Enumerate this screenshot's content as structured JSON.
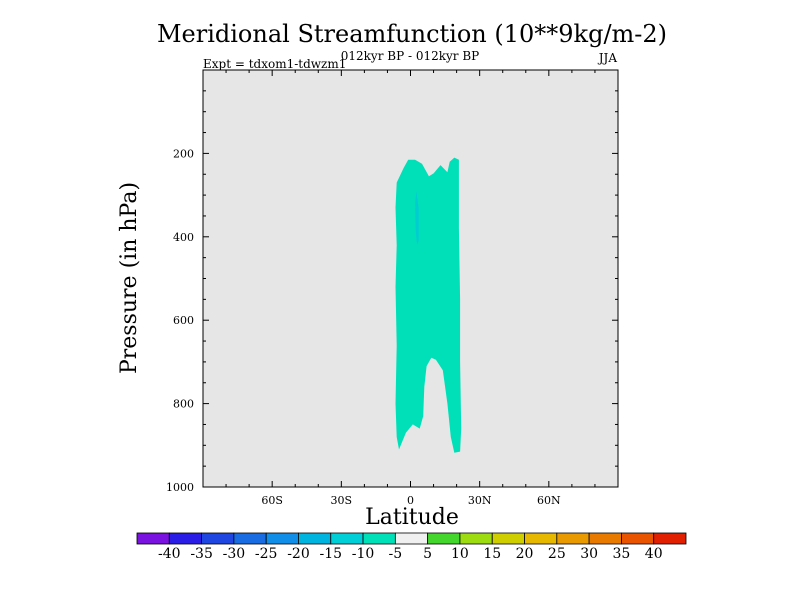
{
  "chart_data": {
    "type": "contour",
    "title": "Meridional Streamfunction (10**9kg/m-2)",
    "subtitle_left": "Expt = tdxom1-tdwzm1",
    "subtitle_center": "012kyr BP - 012kyr BP",
    "subtitle_right": "JJA",
    "xlabel": "Latitude",
    "ylabel": "Pressure (in hPa)",
    "xlim": [
      -90,
      90
    ],
    "ylim": [
      1000,
      0
    ],
    "x_ticks": [
      {
        "value": -60,
        "label": "60S"
      },
      {
        "value": -30,
        "label": "30S"
      },
      {
        "value": 0,
        "label": "0"
      },
      {
        "value": 30,
        "label": "30N"
      },
      {
        "value": 60,
        "label": "60N"
      }
    ],
    "y_ticks": [
      {
        "value": 200,
        "label": "200"
      },
      {
        "value": 400,
        "label": "400"
      },
      {
        "value": 600,
        "label": "600"
      },
      {
        "value": 800,
        "label": "800"
      },
      {
        "value": 1000,
        "label": "1000"
      }
    ],
    "contour_regions": [
      {
        "name": "contour-region-minus-10-to-minus-5",
        "color": "#00e0b8",
        "points": [
          [
            -5,
            910
          ],
          [
            -6,
            880
          ],
          [
            -6.5,
            800
          ],
          [
            -6,
            660
          ],
          [
            -6.5,
            520
          ],
          [
            -6,
            420
          ],
          [
            -6.5,
            330
          ],
          [
            -6,
            270
          ],
          [
            -3,
            235
          ],
          [
            -1,
            215
          ],
          [
            2,
            215
          ],
          [
            5,
            225
          ],
          [
            8,
            255
          ],
          [
            10,
            248
          ],
          [
            13,
            228
          ],
          [
            16,
            245
          ],
          [
            17,
            220
          ],
          [
            19,
            210
          ],
          [
            21,
            215
          ],
          [
            21,
            380
          ],
          [
            21.5,
            550
          ],
          [
            21.5,
            700
          ],
          [
            22,
            860
          ],
          [
            21.5,
            915
          ],
          [
            19,
            918
          ],
          [
            17.5,
            880
          ],
          [
            16,
            800
          ],
          [
            14,
            720
          ],
          [
            11,
            695
          ],
          [
            9,
            690
          ],
          [
            7,
            710
          ],
          [
            6,
            760
          ],
          [
            5.5,
            830
          ],
          [
            4,
            860
          ],
          [
            1,
            850
          ],
          [
            -2,
            870
          ]
        ]
      },
      {
        "name": "contour-region-minus-15-to-minus-10",
        "color": "#00ccd2",
        "points": [
          [
            2.5,
            290
          ],
          [
            3.5,
            330
          ],
          [
            3.5,
            410
          ],
          [
            2.8,
            420
          ],
          [
            2.2,
            380
          ],
          [
            2.0,
            320
          ]
        ]
      }
    ],
    "colorbar": {
      "colors": [
        "#7a12e0",
        "#2a1ee6",
        "#1f46e0",
        "#1a6ce2",
        "#108ee8",
        "#00b4e0",
        "#00cfd8",
        "#00e0b8",
        "#f0f0f0",
        "#44d62c",
        "#9cdc10",
        "#cece00",
        "#e6b800",
        "#e89a00",
        "#e87a00",
        "#e85400",
        "#e02000"
      ],
      "labels": [
        "-40",
        "-35",
        "-30",
        "-25",
        "-20",
        "-15",
        "-10",
        "-5",
        "5",
        "10",
        "15",
        "20",
        "25",
        "30",
        "35",
        "40"
      ]
    }
  }
}
